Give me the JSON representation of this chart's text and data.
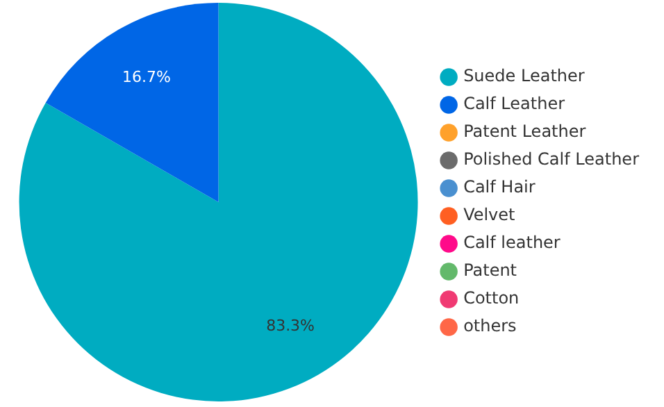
{
  "chart_data": {
    "type": "pie",
    "categories": [
      "Suede Leather",
      "Calf Leather",
      "Patent Leather",
      "Polished Calf Leather",
      "Calf Hair",
      "Velvet",
      "Calf leather",
      "Patent",
      "Cotton",
      "others"
    ],
    "values": [
      83.3,
      16.7,
      0,
      0,
      0,
      0,
      0,
      0,
      0,
      0
    ],
    "value_labels": [
      "83.3%",
      "16.7%",
      null,
      null,
      null,
      null,
      null,
      null,
      null,
      null
    ],
    "colors": [
      "#00acc1",
      "#0066e6",
      "#ffa12b",
      "#6b6b6b",
      "#4a90d0",
      "#ff5f22",
      "#ff0a8a",
      "#63b96b",
      "#f03a73",
      "#ff6747"
    ],
    "legend": "right"
  }
}
